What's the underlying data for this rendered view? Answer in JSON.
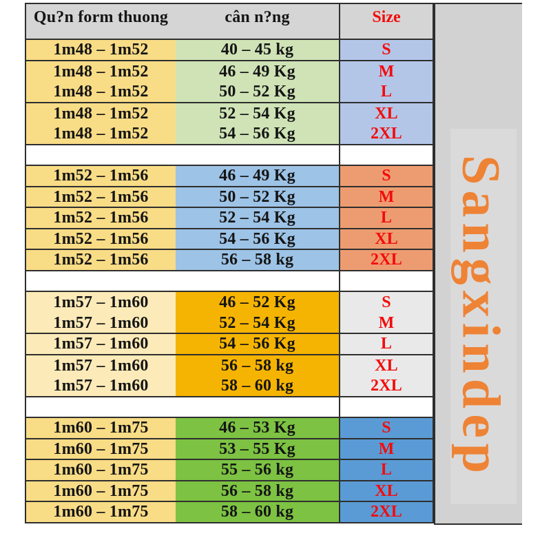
{
  "colors": {
    "page_bg": "#ffffff",
    "border": "#2e2e2e",
    "text": "#151515",
    "red": "#f30b0b",
    "orange": "#ee8335",
    "header_bg": "#d6d5d5",
    "panel_bg": "#d3d2d2",
    "backdrop_bg": "#dbdada"
  },
  "header": {
    "col1_label": "Qu?n form thuong",
    "col2_label": "cân n?ng",
    "size_label": "Size"
  },
  "watermark": {
    "text": "Sangxindep"
  },
  "table": {
    "size_text_color": "#f30b0b",
    "groups": [
      {
        "height_bg": "#f8dc86",
        "weight_bg": "#cfe3b6",
        "size_bg": "#b4c6e8",
        "borders_after": [
          0,
          2,
          4
        ],
        "rows": [
          {
            "height": "1m48 – 1m52",
            "weight": "40 – 45 kg",
            "size": "S"
          },
          {
            "height": "1m48 – 1m52",
            "weight": "46 – 49 Kg",
            "size": "M"
          },
          {
            "height": "1m48 – 1m52",
            "weight": "50 – 52 Kg",
            "size": "L"
          },
          {
            "height": "1m48 – 1m52",
            "weight": "52 – 54 Kg",
            "size": "XL"
          },
          {
            "height": "1m48 – 1m52",
            "weight": "54 – 56 Kg",
            "size": "2XL"
          }
        ]
      },
      {
        "height_bg": "#f8dc86",
        "weight_bg": "#9dc3e6",
        "size_bg": "#ed9c71",
        "borders_after": [
          0,
          1,
          2,
          3,
          4
        ],
        "rows": [
          {
            "height": "1m52 – 1m56",
            "weight": "46 – 49 Kg",
            "size": "S"
          },
          {
            "height": "1m52 – 1m56",
            "weight": "50 – 52 Kg",
            "size": "M"
          },
          {
            "height": "1m52 – 1m56",
            "weight": "52 – 54 Kg",
            "size": "L"
          },
          {
            "height": "1m52 – 1m56",
            "weight": "54 – 56 Kg",
            "size": "XL"
          },
          {
            "height": "1m52 – 1m56",
            "weight": "56 – 58 kg",
            "size": "2XL"
          }
        ]
      },
      {
        "height_bg": "#fceab8",
        "weight_bg": "#f6b402",
        "size_bg": "#eae9e9",
        "borders_after": [
          1,
          2,
          4
        ],
        "rows": [
          {
            "height": "1m57 – 1m60",
            "weight": "46 – 52 Kg",
            "size": "S"
          },
          {
            "height": "1m57 – 1m60",
            "weight": "52 – 54 Kg",
            "size": "M"
          },
          {
            "height": "1m57 – 1m60",
            "weight": "54 – 56 Kg",
            "size": "L"
          },
          {
            "height": "1m57 – 1m60",
            "weight": "56 – 58 kg",
            "size": "XL"
          },
          {
            "height": "1m57 – 1m60",
            "weight": "58 – 60 kg",
            "size": "2XL"
          }
        ]
      },
      {
        "height_bg": "#f8dc86",
        "weight_bg": "#7dc243",
        "size_bg": "#5b9bd5",
        "borders_after": [
          0,
          1,
          2,
          3,
          4
        ],
        "rows": [
          {
            "height": "1m60 – 1m75",
            "weight": "46 – 53 Kg",
            "size": "S"
          },
          {
            "height": "1m60 – 1m75",
            "weight": "53 – 55 Kg",
            "size": "M"
          },
          {
            "height": "1m60 – 1m75",
            "weight": "55 – 56 kg",
            "size": "L"
          },
          {
            "height": "1m60 – 1m75",
            "weight": "56 – 58 kg",
            "size": "XL"
          },
          {
            "height": "1m60 – 1m75",
            "weight": "58 – 60 kg",
            "size": "2XL"
          }
        ]
      }
    ]
  }
}
